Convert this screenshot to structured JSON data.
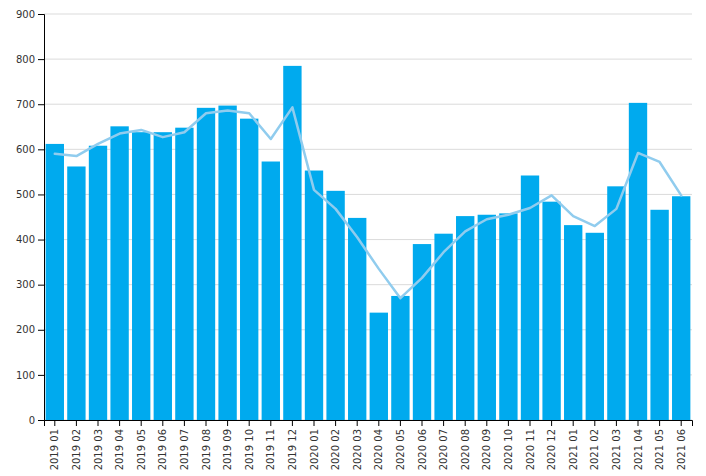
{
  "chart_data": {
    "type": "bar",
    "categories": [
      "2019 01",
      "2019 02",
      "2019 03",
      "2019 04",
      "2019 05",
      "2019 06",
      "2019 07",
      "2019 08",
      "2019 09",
      "2019 10",
      "2019 11",
      "2019 12",
      "2020 01",
      "2020 02",
      "2020 03",
      "2020 04",
      "2020 05",
      "2020 06",
      "2020 07",
      "2020 08",
      "2020 09",
      "2020 10",
      "2020 11",
      "2020 12",
      "2021 01",
      "2021 02",
      "2021 03",
      "2021 04",
      "2021 05",
      "2021 06"
    ],
    "series": [
      {
        "type": "bar",
        "color": "#00AAEE",
        "values": [
          612,
          562,
          608,
          651,
          638,
          638,
          648,
          692,
          697,
          668,
          573,
          785,
          553,
          508,
          448,
          238,
          275,
          390,
          413,
          452,
          455,
          458,
          542,
          484,
          432,
          415,
          518,
          703,
          466,
          496
        ]
      },
      {
        "type": "line",
        "color": "#90CCEE",
        "values": [
          590,
          585,
          612,
          635,
          643,
          627,
          638,
          680,
          686,
          680,
          623,
          693,
          510,
          468,
          405,
          335,
          270,
          315,
          372,
          418,
          445,
          455,
          470,
          498,
          452,
          430,
          468,
          592,
          572,
          498
        ]
      }
    ],
    "ylim": [
      0,
      900
    ],
    "yticks": [
      0,
      100,
      200,
      300,
      400,
      500,
      600,
      700,
      800,
      900
    ],
    "grid": true
  }
}
